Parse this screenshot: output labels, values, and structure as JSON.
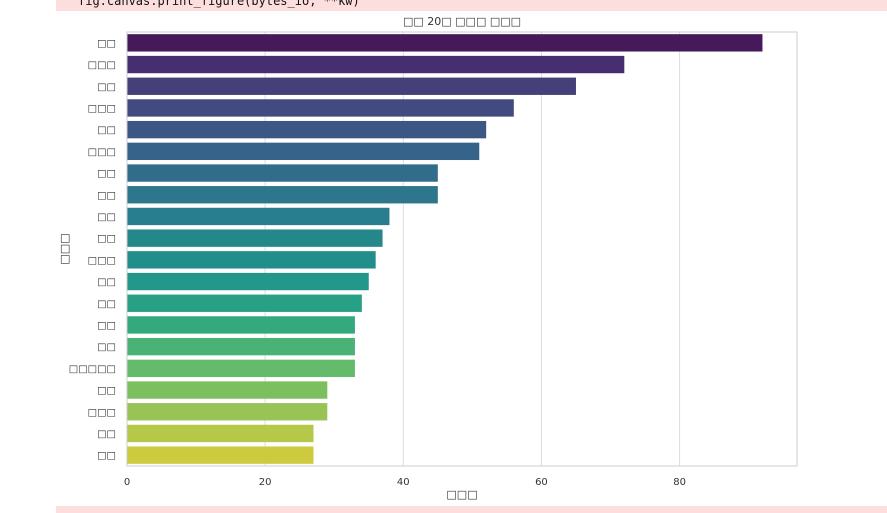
{
  "stderr": {
    "line": "fig.canvas.print_figure(bytes_io, **kw)"
  },
  "chart_data": {
    "type": "bar",
    "orientation": "horizontal",
    "title": "□□ 20□ □□□ □□□",
    "xlabel": "□□□",
    "ylabel": "□□□",
    "categories": [
      "□□",
      "□□□",
      "□□",
      "□□□",
      "□□",
      "□□□",
      "□□",
      "□□",
      "□□",
      "□□",
      "□□□",
      "□□",
      "□□",
      "□□",
      "□□",
      "□□□□□",
      "□□",
      "□□□",
      "□□",
      "□□"
    ],
    "values": [
      92,
      72,
      65,
      56,
      52,
      51,
      45,
      45,
      38,
      37,
      36,
      35,
      34,
      33,
      33,
      33,
      29,
      29,
      27,
      27
    ],
    "xlim": [
      0,
      97
    ],
    "xticks": [
      0,
      20,
      40,
      60,
      80
    ],
    "grid": true,
    "palette": "viridis",
    "colors": [
      "#46195b",
      "#472e70",
      "#453f7a",
      "#414b80",
      "#3b5885",
      "#366389",
      "#316d8a",
      "#2d768b",
      "#287e8c",
      "#24888b",
      "#218e8b",
      "#22978a",
      "#28a085",
      "#35a97e",
      "#4ab275",
      "#64bb6b",
      "#7cbf5f",
      "#9ac356",
      "#b6c84a",
      "#cdca40"
    ]
  }
}
